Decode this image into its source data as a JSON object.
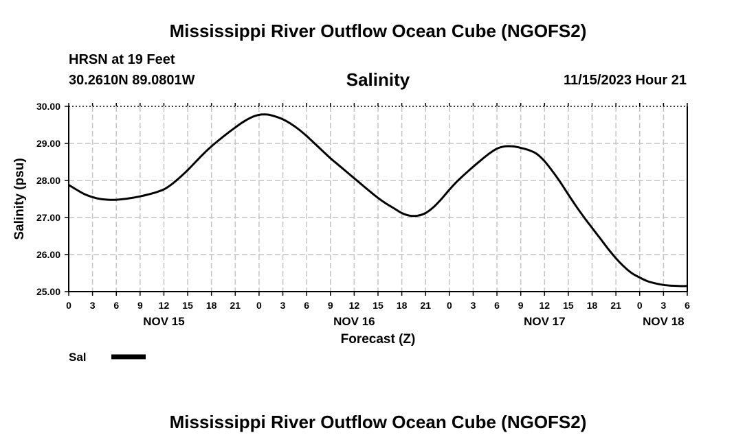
{
  "header": {
    "title": "Mississippi River Outflow Ocean Cube (NGOFS2)",
    "station": "HRSN at 19 Feet",
    "coordinates": "30.2610N  89.0801W",
    "variable": "Salinity",
    "date": "11/15/2023 Hour 21"
  },
  "footer": {
    "title": "Mississippi River Outflow Ocean Cube (NGOFS2)"
  },
  "chart_data": {
    "type": "line",
    "title": "Salinity",
    "xlabel": "Forecast (Z)",
    "ylabel": "Salinity (psu)",
    "xlim": [
      0,
      78
    ],
    "ylim": [
      25.0,
      30.0
    ],
    "grid": true,
    "x_tick_labels": [
      "0",
      "3",
      "6",
      "9",
      "12",
      "15",
      "18",
      "21",
      "0",
      "3",
      "6",
      "9",
      "12",
      "15",
      "18",
      "21",
      "0",
      "3",
      "6",
      "9",
      "12",
      "15",
      "18",
      "21",
      "0",
      "3",
      "6"
    ],
    "y_tick_labels": [
      "25.00",
      "26.00",
      "27.00",
      "28.00",
      "29.00",
      "30.00"
    ],
    "y_ticks": [
      25,
      26,
      27,
      28,
      29,
      30
    ],
    "day_labels": [
      {
        "label": "NOV 15",
        "x": 12
      },
      {
        "label": "NOV 16",
        "x": 36
      },
      {
        "label": "NOV 17",
        "x": 60
      },
      {
        "label": "NOV 18",
        "x": 75
      }
    ],
    "legend": [
      {
        "name": "Sal",
        "color": "#000000"
      }
    ],
    "series": [
      {
        "name": "Sal",
        "color": "#000000",
        "x": [
          0,
          1,
          2,
          3,
          4,
          5,
          6,
          7,
          8,
          9,
          10,
          11,
          12,
          13,
          14,
          15,
          16,
          17,
          18,
          19,
          20,
          21,
          22,
          23,
          24,
          25,
          26,
          27,
          28,
          29,
          30,
          31,
          32,
          33,
          34,
          35,
          36,
          37,
          38,
          39,
          40,
          41,
          42,
          43,
          44,
          45,
          46,
          47,
          48,
          49,
          50,
          51,
          52,
          53,
          54,
          55,
          56,
          57,
          58,
          59,
          60,
          61,
          62,
          63,
          64,
          65,
          66,
          67,
          68,
          69,
          70,
          71,
          72,
          73,
          74,
          75,
          76,
          77,
          78
        ],
        "values": [
          27.88,
          27.75,
          27.63,
          27.55,
          27.5,
          27.48,
          27.48,
          27.5,
          27.53,
          27.57,
          27.62,
          27.68,
          27.76,
          27.9,
          28.08,
          28.28,
          28.5,
          28.72,
          28.92,
          29.1,
          29.27,
          29.43,
          29.58,
          29.7,
          29.77,
          29.78,
          29.73,
          29.65,
          29.53,
          29.38,
          29.2,
          29.0,
          28.8,
          28.6,
          28.42,
          28.24,
          28.06,
          27.88,
          27.7,
          27.53,
          27.38,
          27.25,
          27.12,
          27.05,
          27.05,
          27.12,
          27.28,
          27.5,
          27.75,
          27.98,
          28.18,
          28.37,
          28.55,
          28.72,
          28.86,
          28.92,
          28.92,
          28.88,
          28.82,
          28.72,
          28.52,
          28.25,
          27.95,
          27.62,
          27.3,
          27.0,
          26.72,
          26.44,
          26.16,
          25.9,
          25.68,
          25.5,
          25.38,
          25.28,
          25.22,
          25.18,
          25.16,
          25.15,
          25.15
        ]
      }
    ]
  }
}
